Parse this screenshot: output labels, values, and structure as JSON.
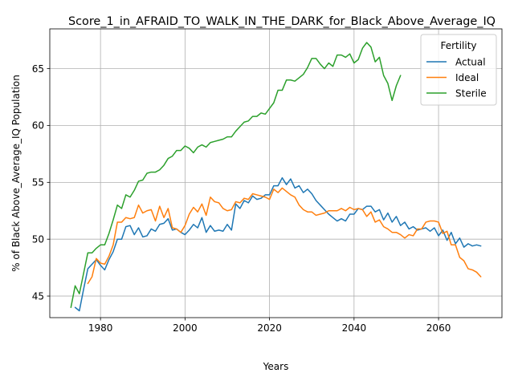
{
  "chart_data": {
    "type": "line",
    "title": "Score_1_in_AFRAID_TO_WALK_IN_THE_DARK_for_Black_Above_Average_IQ",
    "xlabel": "Years",
    "ylabel": "% of Black Above_Average_IQ Population",
    "xlim": [
      1968,
      2075
    ],
    "ylim": [
      43.1,
      68.5
    ],
    "xticks": [
      1980,
      2000,
      2020,
      2040,
      2060
    ],
    "yticks": [
      45,
      50,
      55,
      60,
      65
    ],
    "grid": true,
    "legend": {
      "title": "Fertility",
      "placement": "upper-right"
    },
    "series": [
      {
        "name": "Actual",
        "color": "#1f77b4",
        "points": [
          [
            1974,
            44.0
          ],
          [
            1975,
            43.7
          ],
          [
            1976,
            45.6
          ],
          [
            1977,
            47.4
          ],
          [
            1978,
            47.8
          ],
          [
            1979,
            48.2
          ],
          [
            1980,
            47.7
          ],
          [
            1981,
            47.3
          ],
          [
            1982,
            48.2
          ],
          [
            1983,
            48.9
          ],
          [
            1984,
            50.0
          ],
          [
            1985,
            50.0
          ],
          [
            1986,
            51.1
          ],
          [
            1987,
            51.2
          ],
          [
            1988,
            50.4
          ],
          [
            1989,
            51.0
          ],
          [
            1990,
            50.2
          ],
          [
            1991,
            50.3
          ],
          [
            1992,
            50.9
          ],
          [
            1993,
            50.7
          ],
          [
            1994,
            51.3
          ],
          [
            1995,
            51.4
          ],
          [
            1996,
            51.8
          ],
          [
            1997,
            50.8
          ],
          [
            1998,
            50.9
          ],
          [
            1999,
            50.6
          ],
          [
            2000,
            50.4
          ],
          [
            2001,
            50.8
          ],
          [
            2002,
            51.3
          ],
          [
            2003,
            51.0
          ],
          [
            2004,
            51.9
          ],
          [
            2005,
            50.6
          ],
          [
            2006,
            51.2
          ],
          [
            2007,
            50.7
          ],
          [
            2008,
            50.8
          ],
          [
            2009,
            50.7
          ],
          [
            2010,
            51.3
          ],
          [
            2011,
            50.8
          ],
          [
            2012,
            53.1
          ],
          [
            2013,
            52.7
          ],
          [
            2014,
            53.4
          ],
          [
            2015,
            53.2
          ],
          [
            2016,
            53.8
          ],
          [
            2017,
            53.5
          ],
          [
            2018,
            53.6
          ],
          [
            2019,
            53.9
          ],
          [
            2020,
            53.9
          ],
          [
            2021,
            54.7
          ],
          [
            2022,
            54.7
          ],
          [
            2023,
            55.4
          ],
          [
            2024,
            54.8
          ],
          [
            2025,
            55.3
          ],
          [
            2026,
            54.5
          ],
          [
            2027,
            54.7
          ],
          [
            2028,
            54.1
          ],
          [
            2029,
            54.4
          ],
          [
            2030,
            54.0
          ],
          [
            2031,
            53.4
          ],
          [
            2032,
            53.0
          ],
          [
            2033,
            52.6
          ],
          [
            2034,
            52.2
          ],
          [
            2035,
            51.9
          ],
          [
            2036,
            51.6
          ],
          [
            2037,
            51.8
          ],
          [
            2038,
            51.6
          ],
          [
            2039,
            52.2
          ],
          [
            2040,
            52.2
          ],
          [
            2041,
            52.7
          ],
          [
            2042,
            52.6
          ],
          [
            2043,
            52.9
          ],
          [
            2044,
            52.9
          ],
          [
            2045,
            52.4
          ],
          [
            2046,
            52.6
          ],
          [
            2047,
            51.7
          ],
          [
            2048,
            52.3
          ],
          [
            2049,
            51.5
          ],
          [
            2050,
            52.0
          ],
          [
            2051,
            51.2
          ],
          [
            2052,
            51.5
          ],
          [
            2053,
            50.9
          ],
          [
            2054,
            51.1
          ],
          [
            2055,
            50.8
          ],
          [
            2056,
            50.9
          ],
          [
            2057,
            51.0
          ],
          [
            2058,
            50.7
          ],
          [
            2059,
            51.0
          ],
          [
            2060,
            50.3
          ],
          [
            2061,
            50.8
          ],
          [
            2062,
            49.9
          ],
          [
            2063,
            50.6
          ],
          [
            2064,
            49.6
          ],
          [
            2065,
            50.1
          ],
          [
            2066,
            49.3
          ],
          [
            2067,
            49.6
          ],
          [
            2068,
            49.4
          ],
          [
            2069,
            49.5
          ],
          [
            2070,
            49.4
          ]
        ]
      },
      {
        "name": "Ideal",
        "color": "#ff7f0e",
        "points": [
          [
            1977,
            46.1
          ],
          [
            1978,
            46.7
          ],
          [
            1979,
            48.3
          ],
          [
            1980,
            47.9
          ],
          [
            1981,
            47.8
          ],
          [
            1982,
            48.5
          ],
          [
            1983,
            49.5
          ],
          [
            1984,
            51.5
          ],
          [
            1985,
            51.5
          ],
          [
            1986,
            51.9
          ],
          [
            1987,
            51.8
          ],
          [
            1988,
            51.9
          ],
          [
            1989,
            53.0
          ],
          [
            1990,
            52.3
          ],
          [
            1991,
            52.5
          ],
          [
            1992,
            52.6
          ],
          [
            1993,
            51.6
          ],
          [
            1994,
            52.9
          ],
          [
            1995,
            51.9
          ],
          [
            1996,
            52.7
          ],
          [
            1997,
            51.0
          ],
          [
            1998,
            50.9
          ],
          [
            1999,
            50.6
          ],
          [
            2000,
            51.2
          ],
          [
            2001,
            52.2
          ],
          [
            2002,
            52.8
          ],
          [
            2003,
            52.4
          ],
          [
            2004,
            53.1
          ],
          [
            2005,
            52.1
          ],
          [
            2006,
            53.7
          ],
          [
            2007,
            53.3
          ],
          [
            2008,
            53.2
          ],
          [
            2009,
            52.7
          ],
          [
            2010,
            52.5
          ],
          [
            2011,
            52.6
          ],
          [
            2012,
            53.3
          ],
          [
            2013,
            53.2
          ],
          [
            2014,
            53.6
          ],
          [
            2015,
            53.5
          ],
          [
            2016,
            54.0
          ],
          [
            2017,
            53.9
          ],
          [
            2018,
            53.8
          ],
          [
            2019,
            53.7
          ],
          [
            2020,
            53.5
          ],
          [
            2021,
            54.4
          ],
          [
            2022,
            54.1
          ],
          [
            2023,
            54.5
          ],
          [
            2024,
            54.2
          ],
          [
            2025,
            53.9
          ],
          [
            2026,
            53.7
          ],
          [
            2027,
            53.0
          ],
          [
            2028,
            52.6
          ],
          [
            2029,
            52.4
          ],
          [
            2030,
            52.4
          ],
          [
            2031,
            52.1
          ],
          [
            2032,
            52.2
          ],
          [
            2033,
            52.3
          ],
          [
            2034,
            52.5
          ],
          [
            2035,
            52.5
          ],
          [
            2036,
            52.5
          ],
          [
            2037,
            52.7
          ],
          [
            2038,
            52.5
          ],
          [
            2039,
            52.8
          ],
          [
            2040,
            52.6
          ],
          [
            2041,
            52.7
          ],
          [
            2042,
            52.6
          ],
          [
            2043,
            52.0
          ],
          [
            2044,
            52.4
          ],
          [
            2045,
            51.5
          ],
          [
            2046,
            51.7
          ],
          [
            2047,
            51.1
          ],
          [
            2048,
            50.9
          ],
          [
            2049,
            50.6
          ],
          [
            2050,
            50.6
          ],
          [
            2051,
            50.4
          ],
          [
            2052,
            50.1
          ],
          [
            2053,
            50.4
          ],
          [
            2054,
            50.3
          ],
          [
            2055,
            50.9
          ],
          [
            2056,
            50.9
          ],
          [
            2057,
            51.5
          ],
          [
            2058,
            51.6
          ],
          [
            2059,
            51.6
          ],
          [
            2060,
            51.5
          ],
          [
            2061,
            50.5
          ],
          [
            2062,
            50.7
          ],
          [
            2063,
            49.5
          ],
          [
            2064,
            49.5
          ],
          [
            2065,
            48.4
          ],
          [
            2066,
            48.1
          ],
          [
            2067,
            47.4
          ],
          [
            2068,
            47.3
          ],
          [
            2069,
            47.1
          ],
          [
            2070,
            46.7
          ]
        ]
      },
      {
        "name": "Sterile",
        "color": "#2ca02c",
        "points": [
          [
            1973,
            44.0
          ],
          [
            1974,
            45.9
          ],
          [
            1975,
            45.2
          ],
          [
            1976,
            47.0
          ],
          [
            1977,
            48.8
          ],
          [
            1978,
            48.8
          ],
          [
            1979,
            49.2
          ],
          [
            1980,
            49.5
          ],
          [
            1981,
            49.5
          ],
          [
            1982,
            50.5
          ],
          [
            1983,
            51.7
          ],
          [
            1984,
            53.0
          ],
          [
            1985,
            52.7
          ],
          [
            1986,
            53.9
          ],
          [
            1987,
            53.7
          ],
          [
            1988,
            54.3
          ],
          [
            1989,
            55.1
          ],
          [
            1990,
            55.2
          ],
          [
            1991,
            55.8
          ],
          [
            1992,
            55.9
          ],
          [
            1993,
            55.9
          ],
          [
            1994,
            56.1
          ],
          [
            1995,
            56.5
          ],
          [
            1996,
            57.1
          ],
          [
            1997,
            57.3
          ],
          [
            1998,
            57.8
          ],
          [
            1999,
            57.8
          ],
          [
            2000,
            58.2
          ],
          [
            2001,
            58.0
          ],
          [
            2002,
            57.6
          ],
          [
            2003,
            58.1
          ],
          [
            2004,
            58.3
          ],
          [
            2005,
            58.1
          ],
          [
            2006,
            58.5
          ],
          [
            2007,
            58.6
          ],
          [
            2008,
            58.7
          ],
          [
            2009,
            58.8
          ],
          [
            2010,
            59.0
          ],
          [
            2011,
            59.0
          ],
          [
            2012,
            59.5
          ],
          [
            2013,
            59.9
          ],
          [
            2014,
            60.3
          ],
          [
            2015,
            60.4
          ],
          [
            2016,
            60.8
          ],
          [
            2017,
            60.8
          ],
          [
            2018,
            61.1
          ],
          [
            2019,
            61.0
          ],
          [
            2020,
            61.5
          ],
          [
            2021,
            62.0
          ],
          [
            2022,
            63.1
          ],
          [
            2023,
            63.1
          ],
          [
            2024,
            64.0
          ],
          [
            2025,
            64.0
          ],
          [
            2026,
            63.9
          ],
          [
            2027,
            64.2
          ],
          [
            2028,
            64.5
          ],
          [
            2029,
            65.1
          ],
          [
            2030,
            65.9
          ],
          [
            2031,
            65.9
          ],
          [
            2032,
            65.4
          ],
          [
            2033,
            65.0
          ],
          [
            2034,
            65.5
          ],
          [
            2035,
            65.2
          ],
          [
            2036,
            66.2
          ],
          [
            2037,
            66.2
          ],
          [
            2038,
            66.0
          ],
          [
            2039,
            66.3
          ],
          [
            2040,
            65.5
          ],
          [
            2041,
            65.8
          ],
          [
            2042,
            66.8
          ],
          [
            2043,
            67.3
          ],
          [
            2044,
            66.9
          ],
          [
            2045,
            65.6
          ],
          [
            2046,
            66.0
          ],
          [
            2047,
            64.4
          ],
          [
            2048,
            63.7
          ],
          [
            2049,
            62.2
          ],
          [
            2050,
            63.5
          ],
          [
            2051,
            64.4
          ]
        ]
      }
    ]
  }
}
